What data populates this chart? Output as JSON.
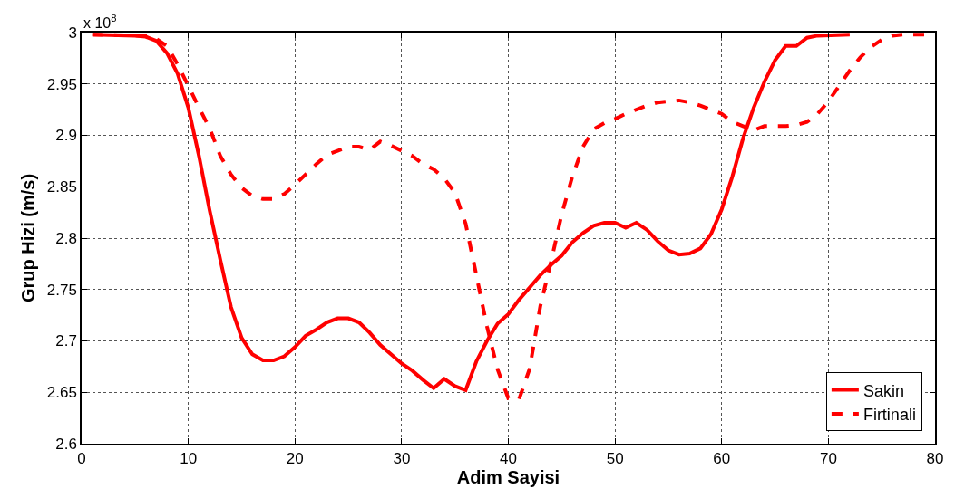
{
  "chart_data": {
    "type": "line",
    "xlabel": "Adim Sayisi",
    "ylabel": "Grup Hizi (m/s)",
    "annotations": [
      "x 10$^{8}$"
    ],
    "xlim": [
      0,
      80
    ],
    "xticks": [
      0,
      10,
      20,
      30,
      40,
      50,
      60,
      70,
      80
    ],
    "ylim": [
      2.6,
      3
    ],
    "yticks": [
      2.6,
      2.65,
      2.7,
      2.75,
      2.8,
      2.85,
      2.9,
      2.95,
      3
    ],
    "grid": true,
    "legend": "bottom right",
    "marker": "none",
    "series": [
      {
        "name": "Sakin",
        "color": "#ff0000",
        "line_style": "solid",
        "x": [
          1,
          5,
          6,
          7,
          8,
          9,
          10,
          11,
          12,
          13,
          14,
          15,
          16,
          17,
          18,
          19,
          20,
          21,
          22,
          23,
          24,
          25,
          26,
          27,
          28,
          29,
          30,
          31,
          32,
          33,
          34,
          35,
          36,
          37,
          38,
          39,
          40,
          41,
          42,
          43,
          44,
          45,
          46,
          47,
          48,
          49,
          50,
          51,
          52,
          53,
          54,
          55,
          56,
          57,
          58,
          59,
          60,
          61,
          62,
          63,
          64,
          65,
          66,
          67,
          68,
          69,
          72
        ],
        "values": [
          2.998,
          2.997,
          2.996,
          2.992,
          2.98,
          2.96,
          2.927,
          2.88,
          2.827,
          2.779,
          2.733,
          2.703,
          2.687,
          2.681,
          2.681,
          2.685,
          2.694,
          2.705,
          2.711,
          2.718,
          2.722,
          2.722,
          2.718,
          2.708,
          2.696,
          2.687,
          2.678,
          2.671,
          2.662,
          2.654,
          2.663,
          2.656,
          2.652,
          2.68,
          2.7,
          2.717,
          2.726,
          2.74,
          2.752,
          2.764,
          2.774,
          2.783,
          2.796,
          2.805,
          2.812,
          2.815,
          2.815,
          2.81,
          2.815,
          2.808,
          2.797,
          2.788,
          2.784,
          2.785,
          2.79,
          2.804,
          2.828,
          2.86,
          2.897,
          2.927,
          2.952,
          2.973,
          2.987,
          2.987,
          2.995,
          2.997,
          2.998
        ]
      },
      {
        "name": "Firtinali",
        "color": "#ff0000",
        "line_style": "dashed",
        "x": [
          1,
          6,
          7,
          8,
          9,
          10,
          11,
          12,
          13,
          14,
          15,
          16,
          17,
          18,
          19,
          20,
          21,
          22,
          23,
          24,
          25,
          26,
          27,
          28,
          29,
          30,
          31,
          32,
          33,
          34,
          35,
          36,
          37,
          38,
          39,
          40,
          41,
          42,
          43,
          44,
          45,
          46,
          47,
          48,
          49,
          50,
          51,
          52,
          53,
          54,
          55,
          56,
          57,
          58,
          59,
          60,
          61,
          62,
          63,
          64,
          65,
          66,
          67,
          68,
          69,
          70,
          71,
          72,
          73,
          74,
          75,
          76,
          77,
          79
        ],
        "values": [
          2.998,
          2.997,
          2.994,
          2.987,
          2.969,
          2.948,
          2.927,
          2.907,
          2.88,
          2.862,
          2.849,
          2.841,
          2.838,
          2.838,
          2.843,
          2.852,
          2.862,
          2.872,
          2.881,
          2.885,
          2.889,
          2.889,
          2.886,
          2.894,
          2.89,
          2.885,
          2.88,
          2.872,
          2.867,
          2.858,
          2.844,
          2.814,
          2.764,
          2.714,
          2.672,
          2.644,
          2.643,
          2.673,
          2.734,
          2.777,
          2.823,
          2.86,
          2.889,
          2.906,
          2.912,
          2.916,
          2.921,
          2.925,
          2.929,
          2.932,
          2.933,
          2.934,
          2.932,
          2.929,
          2.925,
          2.921,
          2.913,
          2.909,
          2.905,
          2.909,
          2.909,
          2.909,
          2.91,
          2.913,
          2.921,
          2.933,
          2.948,
          2.963,
          2.976,
          2.986,
          2.993,
          2.997,
          2.998,
          2.998
        ]
      }
    ]
  }
}
